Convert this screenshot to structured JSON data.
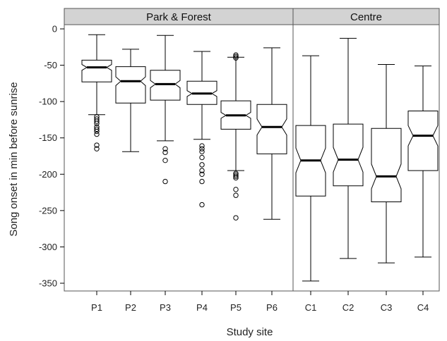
{
  "chart_data": {
    "type": "boxplot",
    "notched": true,
    "xlabel": "Study site",
    "ylabel": "Song onset in min before sunrise",
    "ylim": [
      -362,
      2
    ],
    "yticks": [
      0,
      -50,
      -100,
      -150,
      -200,
      -250,
      -300,
      -350
    ],
    "panels": [
      {
        "label": "Park & Forest",
        "categories": [
          "P1",
          "P2",
          "P3",
          "P4",
          "P5",
          "P6"
        ]
      },
      {
        "label": "Centre",
        "categories": [
          "C1",
          "C2",
          "C3",
          "C4"
        ]
      }
    ],
    "boxes": [
      {
        "site": "P1",
        "whisker_high": -8,
        "q3": -43,
        "median": -53,
        "q1": -73,
        "whisker_low": -118,
        "notch": [
          -49,
          -57
        ],
        "outliers": [
          -121,
          -124,
          -127,
          -130,
          -135,
          -138,
          -141,
          -145,
          -160,
          -165
        ]
      },
      {
        "site": "P2",
        "whisker_high": -28,
        "q3": -52,
        "median": -72,
        "q1": -102,
        "whisker_low": -169,
        "notch": [
          -66,
          -78
        ],
        "outliers": []
      },
      {
        "site": "P3",
        "whisker_high": -9,
        "q3": -57,
        "median": -76,
        "q1": -98,
        "whisker_low": -154,
        "notch": [
          -71,
          -81
        ],
        "outliers": [
          -165,
          -170,
          -181,
          -210
        ]
      },
      {
        "site": "P4",
        "whisker_high": -31,
        "q3": -72,
        "median": -89,
        "q1": -104,
        "whisker_low": -152,
        "notch": [
          -85,
          -93
        ],
        "outliers": [
          -161,
          -165,
          -169,
          -177,
          -187,
          -195,
          -200,
          -210,
          -242
        ]
      },
      {
        "site": "P5",
        "whisker_high": -39,
        "q3": -99,
        "median": -119,
        "q1": -138,
        "whisker_low": -195,
        "notch": [
          -115,
          -123
        ],
        "outliers": [
          -36,
          -38,
          -40,
          -199,
          -201,
          -203,
          -205,
          -221,
          -229,
          -260
        ]
      },
      {
        "site": "P6",
        "whisker_high": -26,
        "q3": -104,
        "median": -135,
        "q1": -172,
        "whisker_low": -262,
        "notch": [
          -124,
          -146
        ],
        "outliers": []
      },
      {
        "site": "C1",
        "whisker_high": -37,
        "q3": -133,
        "median": -181,
        "q1": -230,
        "whisker_low": -347,
        "notch": [
          -164,
          -198
        ],
        "outliers": []
      },
      {
        "site": "C2",
        "whisker_high": -13,
        "q3": -131,
        "median": -180,
        "q1": -216,
        "whisker_low": -316,
        "notch": [
          -163,
          -197
        ],
        "outliers": []
      },
      {
        "site": "C3",
        "whisker_high": -49,
        "q3": -137,
        "median": -203,
        "q1": -238,
        "whisker_low": -322,
        "notch": [
          -186,
          -220
        ],
        "outliers": []
      },
      {
        "site": "C4",
        "whisker_high": -51,
        "q3": -113,
        "median": -147,
        "q1": -195,
        "whisker_low": -314,
        "notch": [
          -133,
          -161
        ],
        "outliers": []
      }
    ],
    "colors": {
      "box_fill": "#ffffff",
      "line": "#000000",
      "strip_fill": "#d3d3d3",
      "panel_border": "#555555"
    }
  }
}
